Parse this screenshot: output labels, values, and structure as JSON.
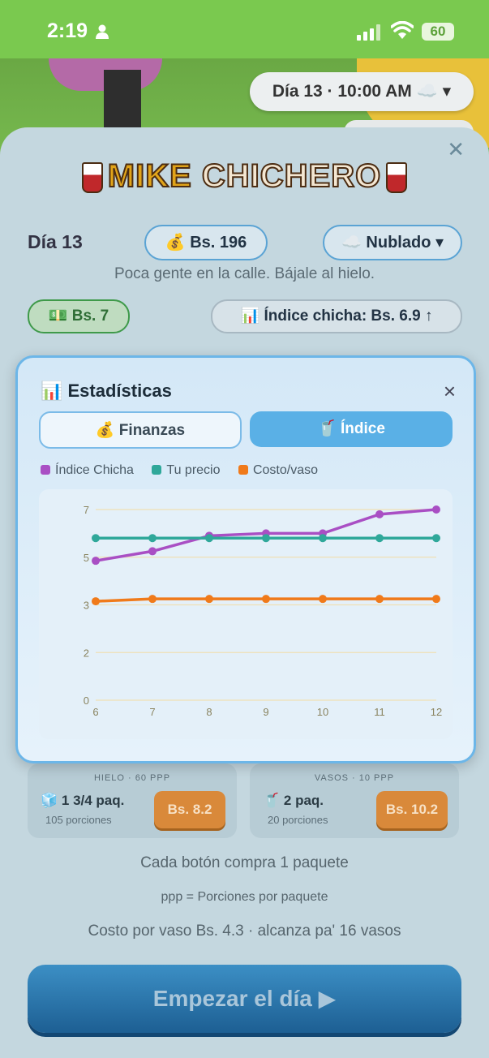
{
  "status_bar": {
    "time": "2:19",
    "battery": "60"
  },
  "top_pill": {
    "label": "Día 13 · 10:00 AM ☁️ ▾"
  },
  "game": {
    "logo_left": "MIKE",
    "logo_right": "CHICHERO",
    "day": "Día 13",
    "money": "💰 Bs. 196",
    "weather": "☁️ Nublado ▾",
    "hint": "Poca gente en la calle. Bájale al hielo.",
    "price": "💵 Bs. 7",
    "index": "📊 Índice chicha: Bs. 6.9 ↑"
  },
  "modal": {
    "title": "📊 Estadísticas",
    "close": "×",
    "tabs": [
      {
        "label": "💰 Finanzas"
      },
      {
        "label": "🥤 Índice"
      }
    ],
    "legend": [
      {
        "label": "Índice Chicha",
        "color": "#a94fc4"
      },
      {
        "label": "Tu precio",
        "color": "#2fa89a"
      },
      {
        "label": "Costo/vaso",
        "color": "#f07a1a"
      }
    ]
  },
  "chart_data": {
    "type": "line",
    "x": [
      6,
      7,
      8,
      9,
      10,
      11,
      12
    ],
    "series": [
      {
        "name": "Índice Chicha",
        "values": [
          4.85,
          5.25,
          5.9,
          6.0,
          6.0,
          6.8,
          7.0
        ]
      },
      {
        "name": "Tu precio",
        "values": [
          5.8,
          5.8,
          5.8,
          5.8,
          5.8,
          5.8,
          5.8
        ]
      },
      {
        "name": "Costo/vaso",
        "values": [
          3.15,
          3.25,
          3.25,
          3.25,
          3.25,
          3.25,
          3.25
        ]
      }
    ],
    "y_ticks": [
      {
        "label": "0",
        "value": 0
      },
      {
        "label": "2",
        "value": 2
      },
      {
        "label": "3",
        "value": 3
      },
      {
        "label": "5",
        "value": 5
      },
      {
        "label": "7",
        "value": 7
      }
    ],
    "grid": true
  },
  "cards": [
    {
      "header": "HIELO · 60 PPP",
      "qty": "🧊 1 3/4 paq.",
      "portions": "105 porciones",
      "buy": "Bs. 8.2"
    },
    {
      "header": "VASOS · 10 PPP",
      "qty": "🥤 2 paq.",
      "portions": "20 porciones",
      "buy": "Bs. 10.2"
    }
  ],
  "notes": {
    "line1": "Cada botón compra 1 paquete",
    "line2": "ppp = Porciones por paquete",
    "line3": "Costo por vaso Bs. 4.3 · alcanza pa' 16 vasos"
  },
  "start_button": "Empezar el día ▶"
}
